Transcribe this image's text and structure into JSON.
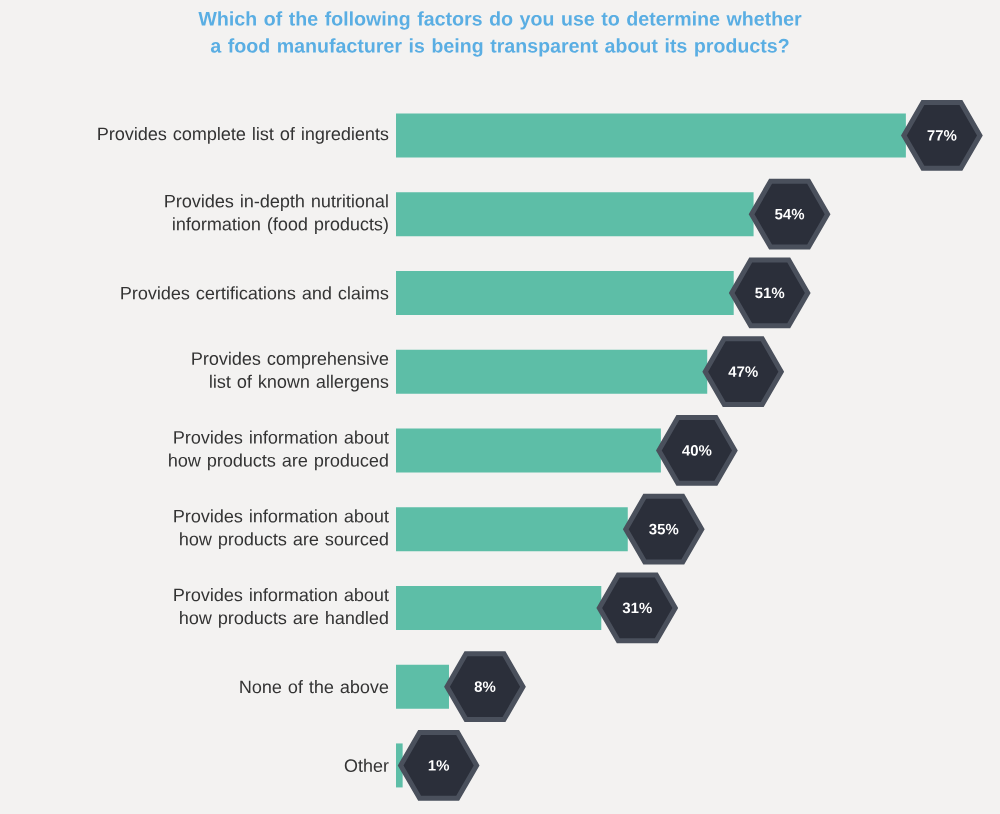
{
  "chart_data": {
    "type": "bar",
    "orientation": "horizontal",
    "title": "Which of the following factors do you use to determine whether a food manufacturer is being transparent about its products?",
    "categories": [
      "Provides complete list of ingredients",
      "Provides in-depth nutritional information (food products)",
      "Provides certifications and claims",
      "Provides comprehensive list of known allergens",
      "Provides information about how products are produced",
      "Provides information about how products are sourced",
      "Provides information about how products are handled",
      "None of the above",
      "Other"
    ],
    "values": [
      77,
      54,
      51,
      47,
      40,
      35,
      31,
      8,
      1
    ],
    "value_labels": [
      "77%",
      "54%",
      "51%",
      "47%",
      "40%",
      "35%",
      "31%",
      "8%",
      "1%"
    ],
    "color": "#5dbea7"
  }
}
